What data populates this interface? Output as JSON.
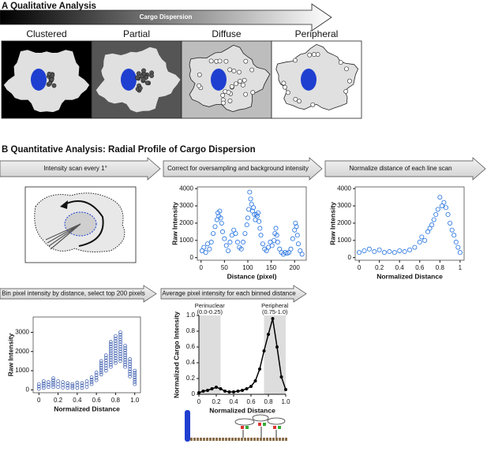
{
  "panel_a": {
    "title": "A Qualitative Analysis",
    "arrow_label": "Cargo Dispersion",
    "categories": [
      "Clustered",
      "Partial",
      "Diffuse",
      "Peripheral"
    ]
  },
  "panel_b": {
    "title": "B Quantitative Analysis: Radial Profile of Cargo Dispersion",
    "steps": [
      "Intensity scan every 1°",
      "Correct for oversampling and background intensity",
      "Normalize distance of each line scan",
      "Bin pixel intensity by distance, select top 200 pixels",
      "Average pixel intensity for each binned distance"
    ]
  },
  "chart_data": [
    {
      "type": "scatter",
      "color": "#1f6fe0",
      "x_label": "Distance (pixel)",
      "y_label": "Raw Intensity",
      "xlim": [
        -8,
        225
      ],
      "ylim": [
        -150,
        4100
      ],
      "xticks": [
        0,
        50,
        100,
        150,
        200
      ],
      "yticks": [
        0,
        1000,
        2000,
        3000,
        4000
      ],
      "x": [
        2,
        6,
        10,
        14,
        18,
        22,
        26,
        30,
        34,
        36,
        38,
        40,
        42,
        44,
        46,
        50,
        54,
        58,
        62,
        66,
        70,
        74,
        78,
        82,
        86,
        90,
        94,
        98,
        100,
        102,
        104,
        106,
        108,
        110,
        112,
        114,
        116,
        118,
        120,
        122,
        124,
        126,
        128,
        132,
        136,
        140,
        144,
        148,
        152,
        156,
        158,
        160,
        162,
        164,
        168,
        172,
        176,
        180,
        184,
        188,
        192,
        196,
        200,
        202,
        204,
        206,
        208,
        212,
        216
      ],
      "values": [
        400,
        600,
        300,
        800,
        500,
        900,
        1400,
        1800,
        2200,
        2600,
        2400,
        2700,
        2300,
        2000,
        1500,
        1100,
        700,
        400,
        900,
        1300,
        1600,
        1400,
        900,
        600,
        500,
        900,
        1400,
        1900,
        2300,
        2800,
        3800,
        3400,
        3100,
        2700,
        2900,
        2500,
        2200,
        2500,
        2400,
        2600,
        2100,
        1700,
        1300,
        800,
        500,
        400,
        600,
        900,
        700,
        1000,
        1400,
        1700,
        1300,
        900,
        500,
        300,
        200,
        300,
        250,
        300,
        500,
        1100,
        1600,
        2000,
        1800,
        1300,
        800,
        400,
        200
      ]
    },
    {
      "type": "scatter",
      "color": "#1f6fe0",
      "x_label": "Normalized Distance",
      "y_label": "Raw Intensity",
      "xlim": [
        -0.04,
        1.04
      ],
      "ylim": [
        -150,
        4100
      ],
      "xticks": [
        0,
        0.2,
        0.4,
        0.6,
        0.8,
        1
      ],
      "yticks": [
        0,
        1000,
        2000,
        3000,
        4000
      ],
      "x": [
        0,
        0.05,
        0.1,
        0.15,
        0.2,
        0.25,
        0.3,
        0.35,
        0.4,
        0.45,
        0.5,
        0.55,
        0.6,
        0.62,
        0.65,
        0.68,
        0.7,
        0.72,
        0.74,
        0.76,
        0.78,
        0.8,
        0.82,
        0.84,
        0.86,
        0.88,
        0.9,
        0.92,
        0.94,
        0.96,
        0.98,
        1
      ],
      "values": [
        300,
        400,
        500,
        350,
        450,
        300,
        350,
        300,
        400,
        350,
        450,
        600,
        900,
        1200,
        1000,
        1500,
        1700,
        1900,
        2200,
        2500,
        2800,
        3500,
        3000,
        3200,
        2900,
        2500,
        2000,
        1600,
        1300,
        900,
        600,
        300
      ]
    },
    {
      "type": "range",
      "color": "#3355aa",
      "x_label": "Normalized Distance",
      "y_label": "Raw Intensity",
      "xlim": [
        -0.06,
        1.06
      ],
      "ylim": [
        -150,
        3800
      ],
      "xticks": [
        0,
        0.2,
        0.4,
        0.6,
        0.8,
        {
          "value": 1,
          "label": "1.0"
        }
      ],
      "yticks": [
        0,
        1000,
        2000,
        3000
      ],
      "x": [
        0,
        0.05,
        0.1,
        0.15,
        0.2,
        0.25,
        0.3,
        0.35,
        0.4,
        0.45,
        0.5,
        0.55,
        0.6,
        0.65,
        0.7,
        0.75,
        0.8,
        0.85,
        0.9,
        0.95,
        1
      ],
      "lows": [
        50,
        100,
        150,
        150,
        150,
        120,
        100,
        100,
        100,
        100,
        150,
        300,
        500,
        800,
        1000,
        1200,
        1400,
        1500,
        1200,
        700,
        300
      ],
      "highs": [
        300,
        450,
        400,
        600,
        450,
        400,
        350,
        300,
        380,
        350,
        450,
        650,
        900,
        1500,
        1800,
        2500,
        2800,
        3000,
        2300,
        1600,
        1000
      ]
    },
    {
      "type": "line",
      "color": "#000000",
      "x_label": "Normalized Distance",
      "y_label": "Normalized Cargo Intensity",
      "xlim": [
        0,
        1
      ],
      "ylim": [
        0,
        1
      ],
      "xticks": [
        0,
        0.2,
        0.4,
        0.6,
        0.8,
        {
          "value": 1,
          "label": "1.0"
        }
      ],
      "yticks": [
        0,
        0.2,
        0.4,
        0.6,
        0.8,
        {
          "value": 1,
          "label": "1.0"
        }
      ],
      "shaded": [
        [
          0,
          0.25
        ],
        [
          0.75,
          1
        ]
      ],
      "annotations": [
        [
          "Perinuclear",
          "(0.0-0.25)"
        ],
        [
          "Peripheral",
          "(0.75-1.0)"
        ]
      ],
      "x": [
        0,
        0.05,
        0.1,
        0.15,
        0.2,
        0.25,
        0.3,
        0.35,
        0.4,
        0.45,
        0.5,
        0.55,
        0.6,
        0.65,
        0.7,
        0.75,
        0.8,
        0.85,
        0.9,
        0.95,
        1
      ],
      "values": [
        0.02,
        0.04,
        0.05,
        0.07,
        0.09,
        0.07,
        0.04,
        0.03,
        0.03,
        0.04,
        0.05,
        0.07,
        0.1,
        0.17,
        0.32,
        0.55,
        0.76,
        0.96,
        0.6,
        0.22,
        0.06
      ]
    }
  ]
}
